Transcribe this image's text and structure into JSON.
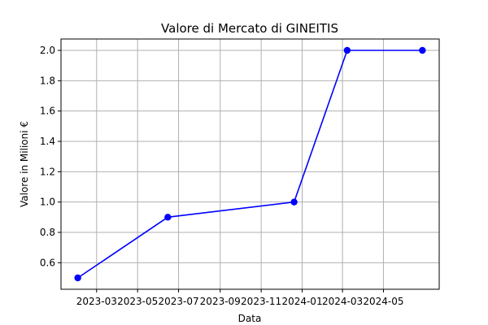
{
  "chart_data": {
    "type": "line",
    "title": "Valore di Mercato di GINEITIS",
    "xlabel": "Data",
    "ylabel": "Valore in Milioni €",
    "x": [
      "2023-02-01",
      "2023-06-15",
      "2023-12-20",
      "2024-03-08",
      "2024-06-28"
    ],
    "series": [
      {
        "values": [
          0.5,
          0.9,
          1.0,
          2.0,
          2.0
        ]
      }
    ],
    "xlim": [
      "2023-01-07",
      "2024-07-23"
    ],
    "ylim": [
      0.425,
      2.075
    ],
    "x_ticks": [
      {
        "date": "2023-03-01",
        "label": "2023-03"
      },
      {
        "date": "2023-05-01",
        "label": "2023-05"
      },
      {
        "date": "2023-07-01",
        "label": "2023-07"
      },
      {
        "date": "2023-09-01",
        "label": "2023-09"
      },
      {
        "date": "2023-11-01",
        "label": "2023-11"
      },
      {
        "date": "2024-01-01",
        "label": "2024-01"
      },
      {
        "date": "2024-03-01",
        "label": "2024-03"
      },
      {
        "date": "2024-05-01",
        "label": "2024-05"
      }
    ],
    "y_ticks": [
      0.6,
      0.8,
      1.0,
      1.2,
      1.4,
      1.6,
      1.8,
      2.0
    ],
    "grid": true,
    "line_color": "#0000ff",
    "marker": "circle"
  }
}
